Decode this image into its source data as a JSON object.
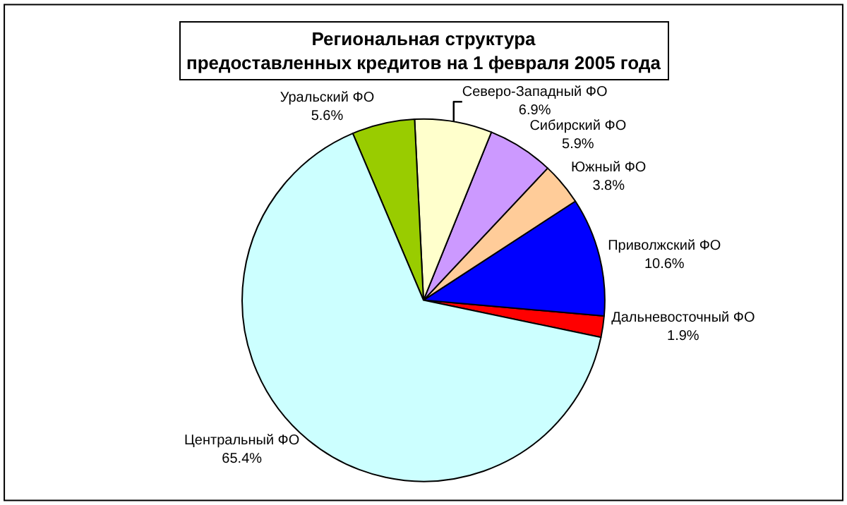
{
  "chart_data": {
    "type": "pie",
    "title": "Региональная структура\nпредоставленных кредитов на 1 февраля 2005 года",
    "categories": [
      "Дальневосточный ФО",
      "Приволжский ФО",
      "Южный ФО",
      "Сибирский ФО",
      "Северо-Западный ФО",
      "Уральский ФО",
      "Центральный ФО"
    ],
    "values": [
      1.9,
      10.6,
      3.8,
      5.9,
      6.9,
      5.6,
      65.4
    ],
    "value_labels": [
      "1.9%",
      "10.6%",
      "3.8%",
      "5.9%",
      "6.9%",
      "5.6%",
      "65.4%"
    ],
    "colors": [
      "#ff0000",
      "#0000ff",
      "#ffcc99",
      "#cc99ff",
      "#ffffcc",
      "#99cc00",
      "#ccffff"
    ],
    "legend": false
  }
}
